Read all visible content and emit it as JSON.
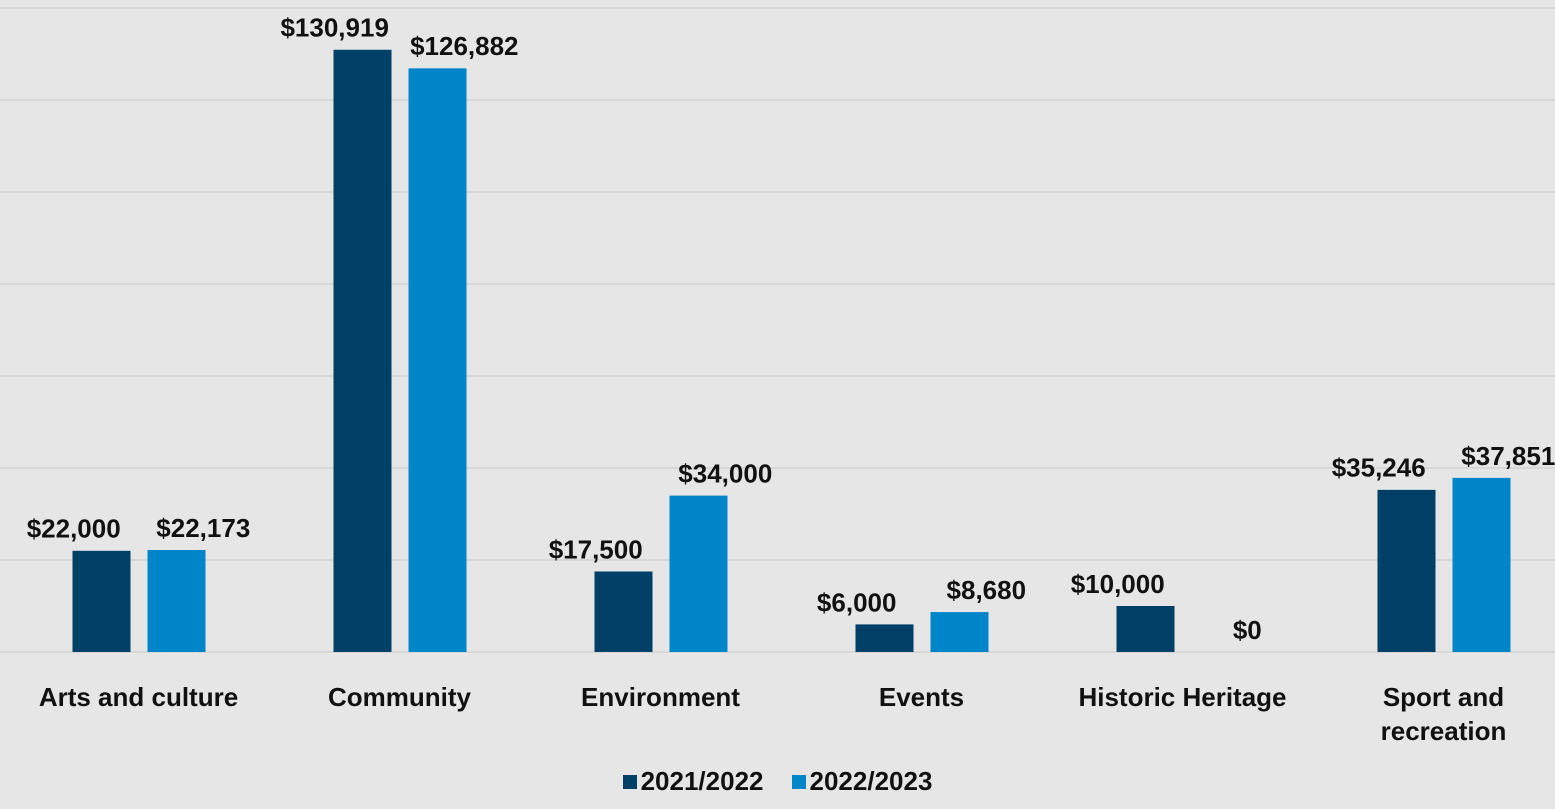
{
  "chart_data": {
    "type": "bar",
    "categories": [
      "Arts and culture",
      "Community",
      "Environment",
      "Events",
      "Historic Heritage",
      "Sport and recreation"
    ],
    "series": [
      {
        "name": "2021/2022",
        "color": "#003f66",
        "values": [
          22000,
          130919,
          17500,
          6000,
          10000,
          35246
        ],
        "value_labels": [
          "$22,000",
          "$130,919",
          "$17,500",
          "$6,000",
          "$10,000",
          "$35,246"
        ]
      },
      {
        "name": "2022/2023",
        "color": "#0085c8",
        "values": [
          22173,
          126882,
          34000,
          8680,
          0,
          37851
        ],
        "value_labels": [
          "$22,173",
          "$126,882",
          "$34,000",
          "$8,680",
          "$0",
          "$37,851"
        ]
      }
    ],
    "ylim": [
      0,
      140000
    ],
    "yticks": [
      0,
      20000,
      40000,
      60000,
      80000,
      100000,
      120000,
      140000
    ],
    "grid": true,
    "legend": "bottom"
  }
}
